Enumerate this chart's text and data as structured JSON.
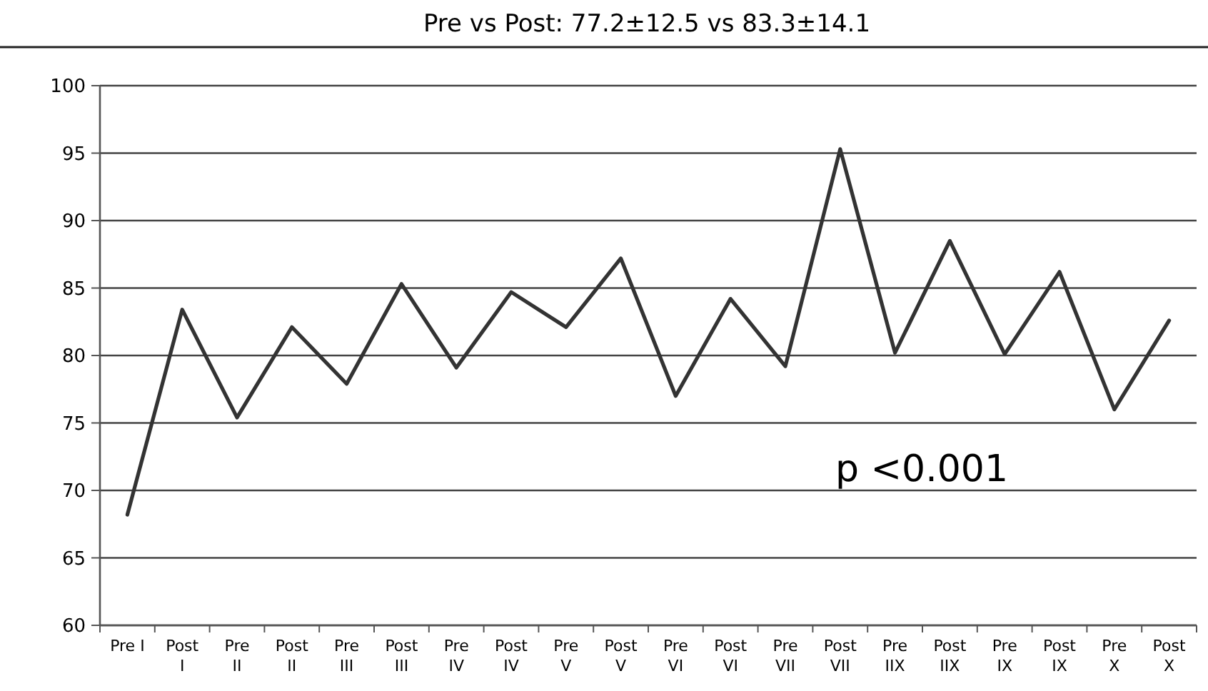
{
  "chart_data": {
    "type": "line",
    "title": "Pre vs Post: 77.2±12.5 vs 83.3±14.1",
    "categories": [
      "Pre I",
      "Post\nI",
      "Pre\nII",
      "Post\nII",
      "Pre\nIII",
      "Post\nIII",
      "Pre\nIV",
      "Post\nIV",
      "Pre\nV",
      "Post\nV",
      "Pre\nVI",
      "Post\nVI",
      "Pre\nVII",
      "Post\nVII",
      "Pre\nIIX",
      "Post\nIIX",
      "Pre\nIX",
      "Post\nIX",
      "Pre\nX",
      "Post\nX"
    ],
    "series": [
      {
        "color": "#333333",
        "values": [
          68.2,
          83.4,
          75.4,
          82.1,
          77.9,
          85.3,
          79.1,
          84.7,
          82.1,
          87.2,
          77.0,
          84.2,
          79.2,
          95.3,
          80.2,
          88.5,
          80.1,
          86.2,
          76.0,
          82.6
        ]
      }
    ],
    "ylim": [
      60,
      100
    ],
    "yticks": [
      60,
      65,
      70,
      75,
      80,
      85,
      90,
      95,
      100
    ],
    "grid": "y",
    "marker": "none",
    "line_style": "solid",
    "annotations": [
      "p <0.001"
    ]
  }
}
